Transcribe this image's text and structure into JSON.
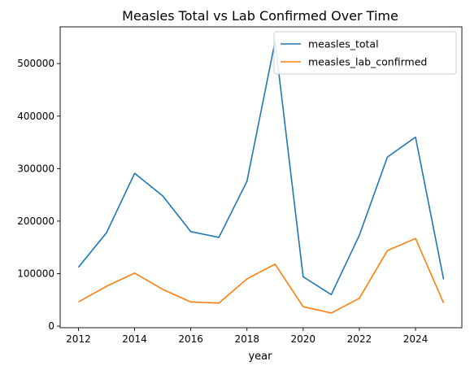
{
  "chart_data": {
    "type": "line",
    "title": "Measles Total vs Lab Confirmed Over Time",
    "xlabel": "year",
    "ylabel": "",
    "x": [
      2012,
      2013,
      2014,
      2015,
      2016,
      2017,
      2018,
      2019,
      2020,
      2021,
      2022,
      2023,
      2024,
      2025
    ],
    "xlim": [
      2011.35,
      2025.65
    ],
    "ylim": [
      -3000,
      570000
    ],
    "xticks": [
      2012,
      2014,
      2016,
      2018,
      2020,
      2022,
      2024
    ],
    "yticks": [
      0,
      100000,
      200000,
      300000,
      400000,
      500000
    ],
    "grid": false,
    "legend": "top-right",
    "series": [
      {
        "name": "measles_total",
        "color": "#1f77b4",
        "values": [
          112000,
          178000,
          291000,
          248000,
          180000,
          169000,
          276000,
          542000,
          94000,
          60000,
          173000,
          322000,
          360000,
          89000
        ]
      },
      {
        "name": "measles_lab_confirmed",
        "color": "#ff7f0e",
        "values": [
          46000,
          76000,
          101000,
          70000,
          46000,
          44000,
          90000,
          118000,
          37000,
          25000,
          53000,
          144000,
          167000,
          44000
        ]
      }
    ]
  }
}
